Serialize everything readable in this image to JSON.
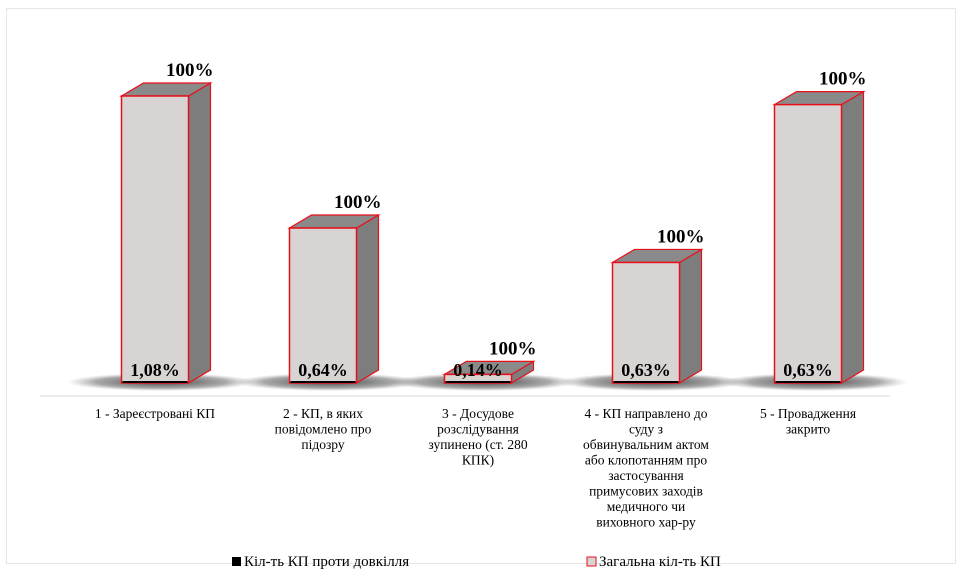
{
  "chart_data": {
    "type": "bar",
    "categories": [
      "1 - Зареєстровані КП",
      "2 - КП, в яких повідомлено про підозру",
      "3 - Досудове розслідування зупинено (ст. 280 КПК)",
      "4 - КП направлено до суду з обвинувальним актом або клопотанням про застосування примусових заходів медичного чи виховного хар-ру",
      "5 - Провадження закрито"
    ],
    "category_lines": [
      [
        "1 - Зареєстровані КП"
      ],
      [
        "2 - КП, в яких",
        "повідомлено про",
        "підозру"
      ],
      [
        "3 - Досудове",
        "розслідування",
        "зупинено (ст. 280",
        "КПК)"
      ],
      [
        "4 - КП направлено до",
        "суду з",
        "обвинувальним актом",
        "або клопотанням про",
        "застосування",
        "примусових заходів",
        "медичного чи",
        "виховного хар-ру"
      ],
      [
        "5 - Провадження",
        "закрито"
      ]
    ],
    "series": [
      {
        "name": "Кіл-ть КП проти довкілля",
        "labels": [
          "1,08%",
          "0,64%",
          "0,14%",
          "0,63%",
          "0,63%"
        ],
        "color": "#000000"
      },
      {
        "name": "Загальна кіл-ть КП",
        "labels": [
          "100%",
          "100%",
          "100%",
          "100%",
          "100%"
        ],
        "values": [
          100,
          54,
          3,
          42,
          97
        ],
        "color": "#d9d4d4",
        "border": "#e8101a"
      }
    ],
    "legend_position": "bottom",
    "grid": false
  }
}
